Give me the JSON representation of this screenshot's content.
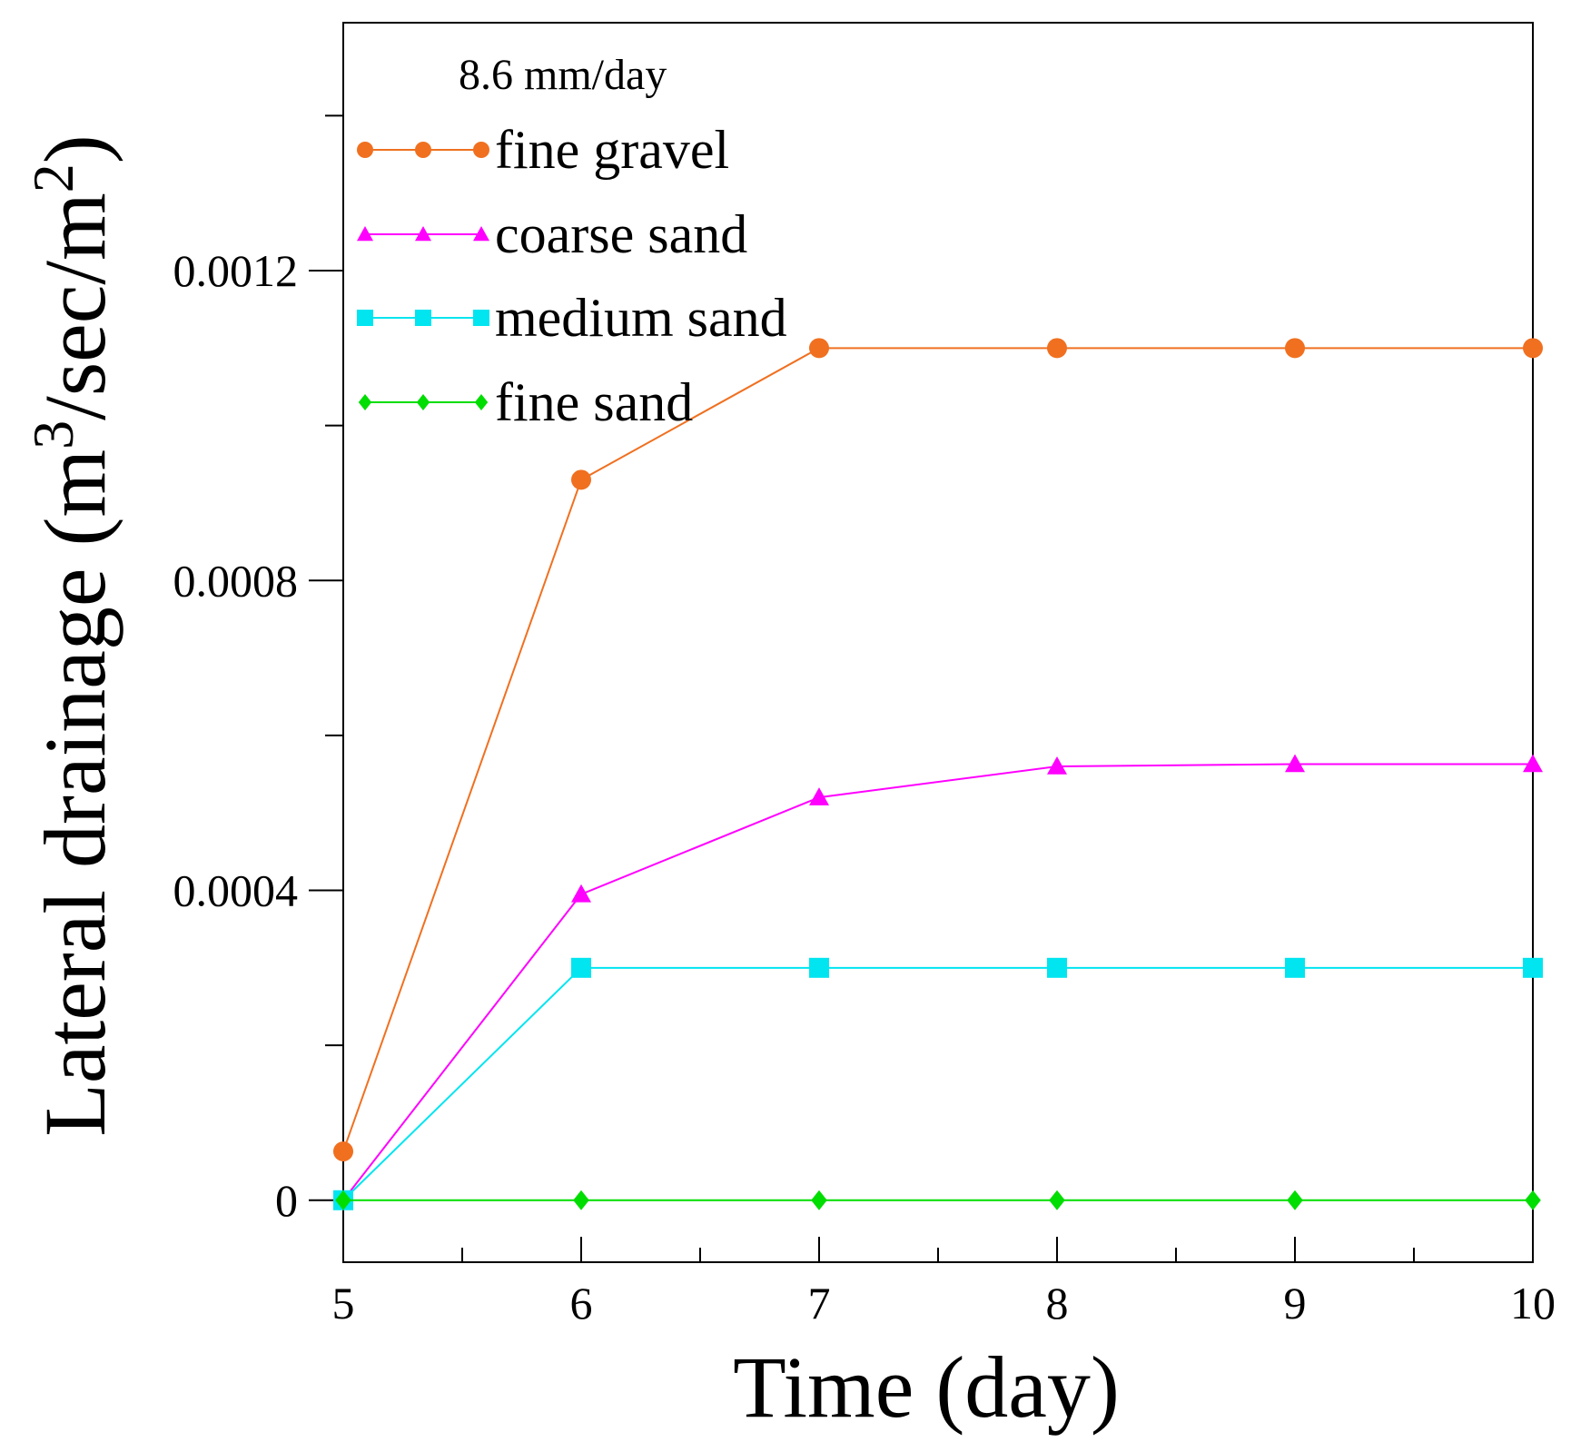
{
  "chart_data": {
    "type": "line",
    "title": "",
    "annotation": "8.6 mm/day",
    "xlabel": "Time (day)",
    "ylabel": {
      "prefix": "Lateral drainage (m",
      "sup1": "3",
      "mid": "/sec/m",
      "sup2": "2",
      "suffix": ")"
    },
    "xlim": [
      5,
      10
    ],
    "ylim": [
      -8e-05,
      0.00152
    ],
    "x_ticks": [
      5,
      6,
      7,
      8,
      9,
      10
    ],
    "x_tick_labels": [
      "5",
      "6",
      "7",
      "8",
      "9",
      "10"
    ],
    "x_minor_ticks": [
      5.5,
      6.5,
      7.5,
      8.5,
      9.5
    ],
    "y_ticks": [
      0,
      0.0004,
      0.0008,
      0.0012
    ],
    "y_tick_labels": [
      "0",
      "0.0004",
      "0.0008",
      "0.0012"
    ],
    "y_minor_ticks": [
      0.0002,
      0.0006,
      0.001,
      0.0014
    ],
    "legend_position": "top-left",
    "series": [
      {
        "name": "fine gravel",
        "color": "#F07020",
        "marker": "circle",
        "x": [
          5,
          6,
          7,
          8,
          9,
          10
        ],
        "y": [
          6.3e-05,
          0.00093,
          0.0011,
          0.0011,
          0.0011,
          0.0011
        ]
      },
      {
        "name": "coarse sand",
        "color": "#FF00FF",
        "marker": "triangle",
        "x": [
          5,
          6,
          7,
          8,
          9,
          10
        ],
        "y": [
          0,
          0.000395,
          0.00052,
          0.00056,
          0.000563,
          0.000563
        ]
      },
      {
        "name": "medium sand",
        "color": "#00E5F0",
        "marker": "square",
        "x": [
          5,
          6,
          7,
          8,
          9,
          10
        ],
        "y": [
          0,
          0.0003,
          0.0003,
          0.0003,
          0.0003,
          0.0003
        ]
      },
      {
        "name": "fine sand",
        "color": "#00DD00",
        "marker": "diamond",
        "x": [
          5,
          6,
          7,
          8,
          9,
          10
        ],
        "y": [
          0,
          0,
          0,
          0,
          0,
          0
        ]
      }
    ]
  }
}
